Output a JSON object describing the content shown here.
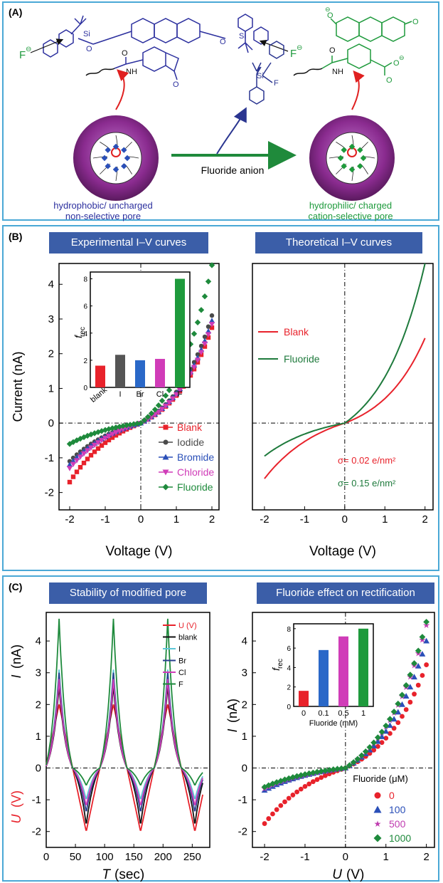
{
  "panel_a": {
    "label": "(A)",
    "reaction_label": "Fluoride anion",
    "left_caption": [
      "hydrophobic/ uncharged",
      "non-selective pore"
    ],
    "right_caption": [
      "hydrophilic/ charged",
      "cation-selective pore"
    ],
    "reagent_atom": "F",
    "reagent_si": "Si",
    "reactant_si": "Si",
    "reactant_o": "O",
    "reactant_nh": "NH",
    "fluoride_ion": "F",
    "charge": "⊖",
    "product_o": "O",
    "colors": {
      "left": "#2b2f9e",
      "right": "#1e9a3c",
      "reagent": "#2a3590",
      "arrow": "#1f8a3b",
      "pore": "#8a2b8f"
    }
  },
  "panel_b": {
    "label": "(B)",
    "left_header": "Experimental I–V curves",
    "right_header": "Theoretical I–V curves",
    "ylabel": "Current (nA)",
    "xlabel": "Voltage (V)",
    "xlabel_right": "Voltage (V)",
    "sigma_red": "σ= 0.02 e/nm²",
    "sigma_green": "σ= 0.15 e/nm²",
    "inset_ylabel": "f",
    "inset_ylabel_sub": "rec"
  },
  "panel_c": {
    "label": "(C)",
    "left_header": "Stability of modified pore",
    "right_header": "Fluoride effect on rectification",
    "left_ylabel_i": "I",
    "left_ylabel_i_unit": "(nA)",
    "left_ylabel_u": "U",
    "left_ylabel_u_unit": "(V)",
    "left_xlabel": "T",
    "left_xlabel_unit": "(sec)",
    "right_ylabel": "I",
    "right_ylabel_unit": "(nA)",
    "right_xlabel": "U",
    "right_xlabel_unit": "(V)",
    "legend_title": "Fluoride (μM)",
    "inset_xlabel": "Fluoride (mM)",
    "inset_ylabel": "f",
    "inset_ylabel_sub": "rec"
  },
  "chart_data": [
    {
      "id": "b_experimental",
      "type": "scatter",
      "title": "Experimental I–V curves",
      "xlabel": "Voltage (V)",
      "ylabel": "Current (nA)",
      "xlim": [
        -2.3,
        2.2
      ],
      "ylim": [
        -2.5,
        4.6
      ],
      "xticks": [
        -2,
        -1,
        0,
        1,
        2
      ],
      "yticks": [
        -2,
        -1,
        0,
        1,
        2,
        3,
        4
      ],
      "legend_position": "bottom-right",
      "series": [
        {
          "name": "Blank",
          "color": "#e8222b",
          "marker": "square",
          "neg_end": -1.7,
          "pos_end": 2.75
        },
        {
          "name": "Iodide",
          "color": "#4a4a4a",
          "marker": "circle",
          "neg_end": -1.1,
          "pos_end": 3.1
        },
        {
          "name": "Bromide",
          "color": "#2a4fb8",
          "marker": "triangle-up",
          "neg_end": -1.2,
          "pos_end": 2.95
        },
        {
          "name": "Chloride",
          "color": "#d03cb8",
          "marker": "triangle-down",
          "neg_end": -1.3,
          "pos_end": 2.85
        },
        {
          "name": "Fluoride",
          "color": "#1e8a3c",
          "marker": "diamond",
          "neg_end": -0.6,
          "pos_end": 4.55
        }
      ]
    },
    {
      "id": "b_inset",
      "type": "bar",
      "categories": [
        "blank",
        "I",
        "Br",
        "Cl",
        "F"
      ],
      "values": [
        1.6,
        2.4,
        2.0,
        2.1,
        8.0
      ],
      "colors": [
        "#e8222b",
        "#555555",
        "#2a68c8",
        "#d03cb8",
        "#1e9a3c"
      ],
      "ylabel": "frec",
      "ylim": [
        0,
        8.5
      ],
      "yticks": [
        0,
        2,
        4,
        6,
        8
      ]
    },
    {
      "id": "b_theoretical",
      "type": "line",
      "title": "Theoretical I–V curves",
      "xlabel": "Voltage (V)",
      "xlim": [
        -2.3,
        2.2
      ],
      "ylim": [
        -2.5,
        4.6
      ],
      "xticks": [
        -2,
        -1,
        0,
        1,
        2
      ],
      "legend_position": "top-left",
      "series": [
        {
          "name": "Blank",
          "color": "#e8222b",
          "neg_end": -1.6,
          "pos_end": 2.45
        },
        {
          "name": "Fluoride",
          "color": "#1e7a3c",
          "neg_end": -0.95,
          "pos_end": 4.6
        }
      ]
    },
    {
      "id": "c_stability",
      "type": "line",
      "title": "Stability of modified pore",
      "xlabel": "T (sec)",
      "ylabel": "I (nA) / U (V)",
      "xlim": [
        0,
        280
      ],
      "ylim": [
        -2.5,
        4.9
      ],
      "xticks": [
        0,
        50,
        100,
        150,
        200,
        250
      ],
      "yticks": [
        -2,
        -1,
        0,
        1,
        2,
        3,
        4
      ],
      "period_sec": 93,
      "peaks_at": [
        22,
        115,
        208
      ],
      "legend_position": "top-right",
      "series": [
        {
          "name": "U (V)",
          "color": "#e8222b",
          "peak": 2.0,
          "trough": -2.0
        },
        {
          "name": "blank",
          "color": "#111111",
          "peak": 2.6,
          "trough": -1.8
        },
        {
          "name": "I",
          "color": "#5cc6d6",
          "peak": 3.1,
          "trough": -1.0
        },
        {
          "name": "Br",
          "color": "#2a3f8e",
          "peak": 3.0,
          "trough": -1.4
        },
        {
          "name": "Cl",
          "color": "#d03cb8",
          "peak": 2.8,
          "trough": -1.2
        },
        {
          "name": "F",
          "color": "#1e8a3c",
          "peak": 4.7,
          "trough": -0.55
        }
      ]
    },
    {
      "id": "c_fluoride",
      "type": "scatter",
      "title": "Fluoride effect on rectification",
      "xlabel": "U (V)",
      "ylabel": "I (nA)",
      "xlim": [
        -2.3,
        2.2
      ],
      "ylim": [
        -2.5,
        4.9
      ],
      "xticks": [
        -2,
        -1,
        0,
        1,
        2
      ],
      "yticks": [
        -2,
        -1,
        0,
        1,
        2,
        3,
        4
      ],
      "legend_position": "bottom-right",
      "series": [
        {
          "name": "0",
          "color": "#e8222b",
          "marker": "circle",
          "neg_end": -1.75,
          "pos_end": 3.25
        },
        {
          "name": "100",
          "color": "#2a4fb8",
          "marker": "triangle-up",
          "neg_end": -0.7,
          "pos_end": 4.0
        },
        {
          "name": "500",
          "color": "#c03cb0",
          "marker": "star",
          "neg_end": -0.65,
          "pos_end": 4.5
        },
        {
          "name": "1000",
          "color": "#1e8a3c",
          "marker": "diamond",
          "neg_end": -0.6,
          "pos_end": 4.6
        }
      ]
    },
    {
      "id": "c_inset",
      "type": "bar",
      "categories": [
        "0",
        "0.1",
        "0.5",
        "1"
      ],
      "values": [
        1.6,
        5.8,
        7.2,
        8.0
      ],
      "colors": [
        "#e8222b",
        "#2a68c8",
        "#d03cb8",
        "#1e9a3c"
      ],
      "xlabel": "Fluoride (mM)",
      "ylabel": "frec",
      "ylim": [
        0,
        8.5
      ],
      "yticks": [
        0,
        2,
        4,
        6,
        8
      ]
    }
  ]
}
